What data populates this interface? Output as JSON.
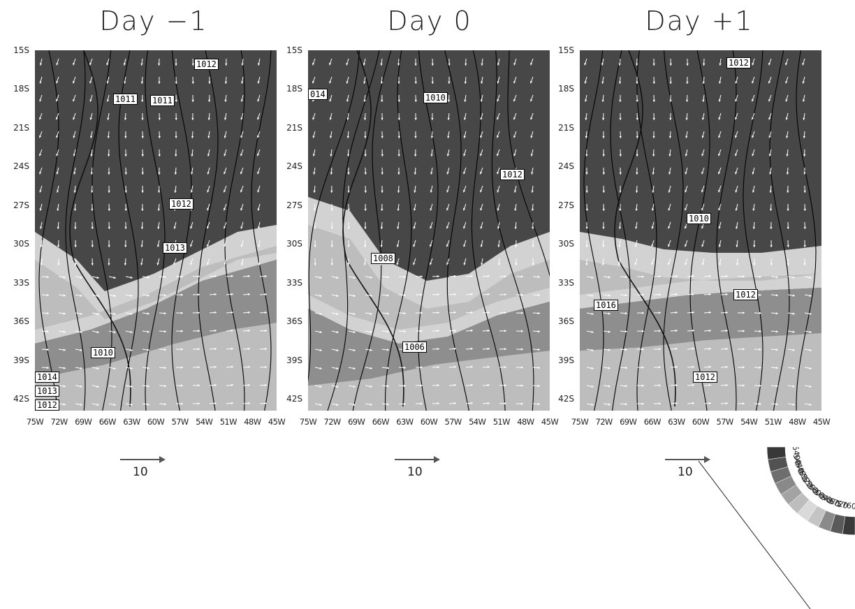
{
  "panels": [
    {
      "title": "Day −1",
      "contour_labels": [
        "1012",
        "1011",
        "1011",
        "1012",
        "1013",
        "1010",
        "1014",
        "1013",
        "1012"
      ]
    },
    {
      "title": "Day 0",
      "contour_labels": [
        "014",
        "1010",
        "1012",
        "1008",
        "1006"
      ]
    },
    {
      "title": "Day +1",
      "contour_labels": [
        "1012",
        "1010",
        "1016",
        "1012",
        "1012"
      ]
    }
  ],
  "axes": {
    "lat_labels": [
      "15S",
      "18S",
      "21S",
      "24S",
      "27S",
      "30S",
      "33S",
      "36S",
      "39S",
      "42S"
    ],
    "lon_labels": [
      "75W",
      "72W",
      "69W",
      "66W",
      "63W",
      "60W",
      "57W",
      "54W",
      "51W",
      "48W",
      "45W"
    ]
  },
  "reference_vector": {
    "label": "10"
  },
  "colorbar": {
    "levels": [
      "5760",
      "5720",
      "5680",
      "5640",
      "5600",
      "5560",
      "5520",
      "5480",
      "5440",
      "5400"
    ],
    "colors": [
      "#3a3a3a",
      "#5a5a5a",
      "#8a8a8a",
      "#c4c4c4",
      "#d9d9d9",
      "#bdbdbd",
      "#a3a3a3",
      "#898989",
      "#6e6e6e",
      "#525252",
      "#383838"
    ]
  },
  "colors": {
    "dark_shade": "#474747",
    "mid_shade": "#8e8e8e",
    "light_shade": "#bdbdbd",
    "lightest_shade": "#d2d2d2",
    "vector_color": "#ffffff",
    "contour_color": "#000000"
  }
}
